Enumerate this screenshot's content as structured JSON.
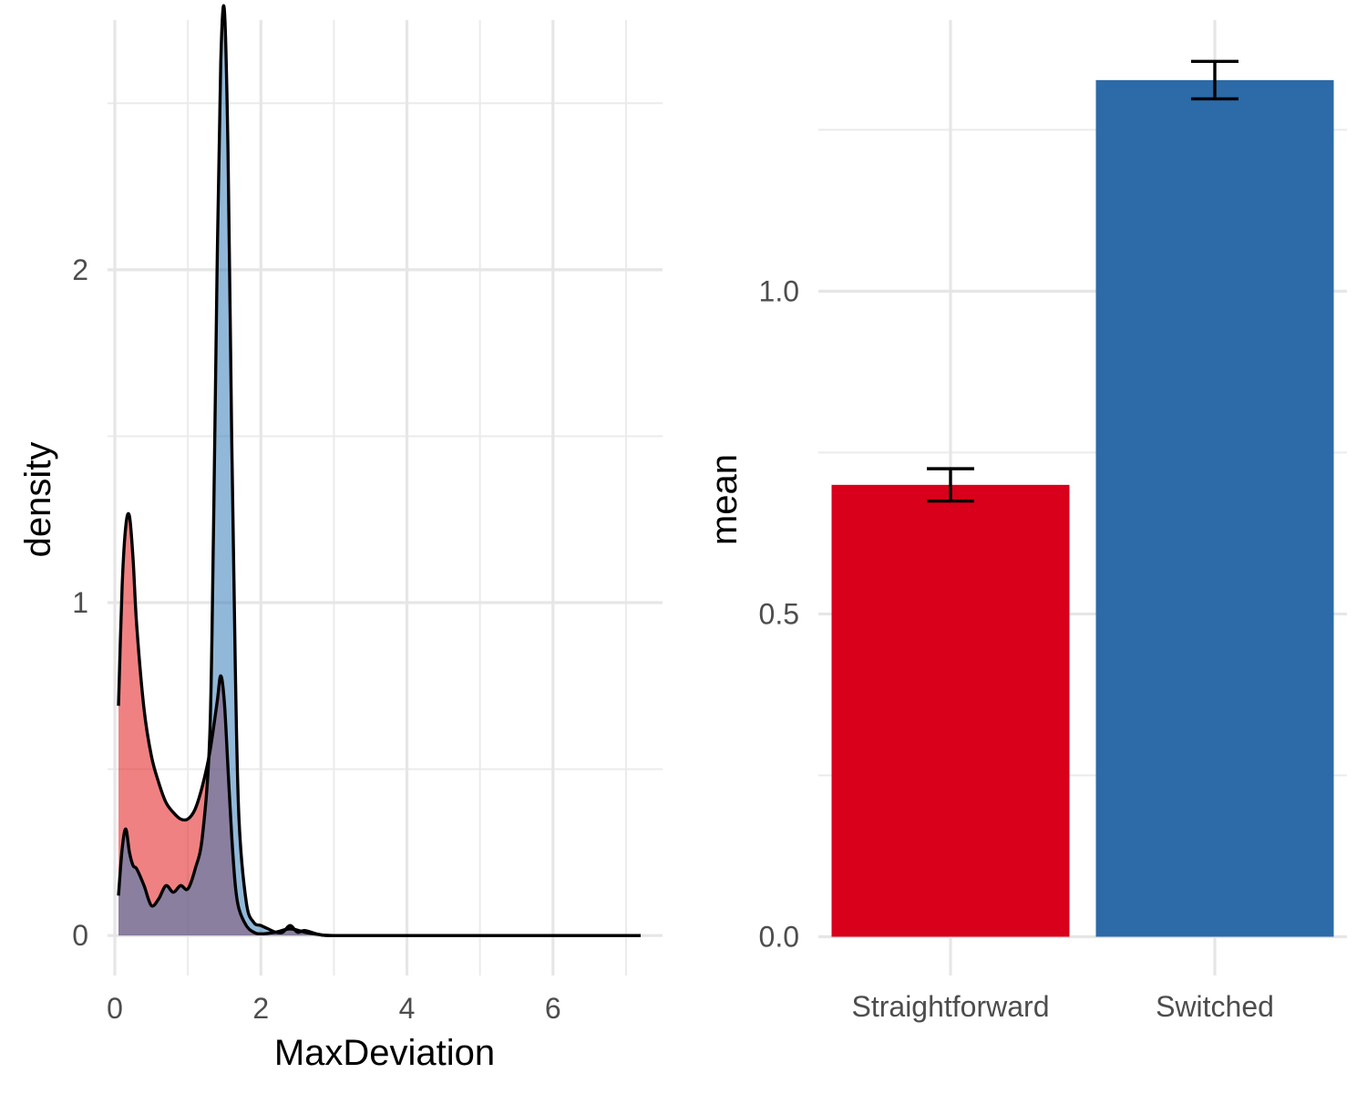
{
  "chart_data": [
    {
      "type": "area",
      "xlabel": "MaxDeviation",
      "ylabel": "density",
      "xlim": [
        -0.1,
        7.5
      ],
      "ylim": [
        -0.12,
        2.75
      ],
      "x_ticks": [
        0,
        2,
        4,
        6
      ],
      "x_tick_labels": [
        "0",
        "2",
        "4",
        "6"
      ],
      "y_ticks": [
        0,
        1,
        2
      ],
      "y_tick_labels": [
        "0",
        "1",
        "2"
      ],
      "grid": true,
      "legend": "none",
      "series": [
        {
          "color": "#e41a1c",
          "fill_opacity": 0.55,
          "x": [
            0.05,
            0.1,
            0.15,
            0.2,
            0.25,
            0.3,
            0.4,
            0.5,
            0.6,
            0.7,
            0.8,
            0.9,
            1.0,
            1.1,
            1.2,
            1.3,
            1.4,
            1.45,
            1.5,
            1.55,
            1.6,
            1.65,
            1.7,
            1.8,
            1.9,
            2.0,
            2.2,
            2.4,
            2.6,
            2.8,
            3.0,
            4.0,
            5.0,
            6.0,
            7.2
          ],
          "y": [
            0.69,
            1.05,
            1.23,
            1.26,
            1.13,
            0.93,
            0.68,
            0.54,
            0.46,
            0.4,
            0.37,
            0.35,
            0.35,
            0.38,
            0.45,
            0.55,
            0.7,
            0.78,
            0.7,
            0.5,
            0.3,
            0.15,
            0.08,
            0.03,
            0.01,
            0.005,
            0.01,
            0.02,
            0.01,
            0.003,
            0.0,
            0.0,
            0.0,
            0.0,
            0.0
          ]
        },
        {
          "color": "#377eb8",
          "fill_opacity": 0.55,
          "x": [
            0.05,
            0.1,
            0.15,
            0.2,
            0.25,
            0.3,
            0.4,
            0.5,
            0.6,
            0.7,
            0.8,
            0.9,
            1.0,
            1.1,
            1.2,
            1.3,
            1.35,
            1.4,
            1.45,
            1.5,
            1.55,
            1.6,
            1.65,
            1.7,
            1.8,
            1.9,
            2.0,
            2.1,
            2.2,
            2.3,
            2.4,
            2.5,
            2.6,
            2.8,
            3.0,
            4.0,
            5.0,
            6.0,
            7.2
          ],
          "y": [
            0.12,
            0.26,
            0.32,
            0.25,
            0.21,
            0.2,
            0.15,
            0.09,
            0.11,
            0.15,
            0.13,
            0.15,
            0.14,
            0.2,
            0.3,
            0.6,
            1.2,
            2.0,
            2.62,
            2.78,
            2.35,
            1.5,
            0.8,
            0.35,
            0.1,
            0.04,
            0.03,
            0.02,
            0.01,
            0.01,
            0.03,
            0.01,
            0.015,
            0.003,
            0.0,
            0.0,
            0.0,
            0.0,
            0.0
          ]
        }
      ]
    },
    {
      "type": "bar",
      "xlabel": "",
      "ylabel": "mean",
      "categories": [
        "Straightforward",
        "Switched"
      ],
      "values": [
        0.7,
        1.327
      ],
      "errors": [
        0.025,
        0.029
      ],
      "colors": [
        "#d9001b",
        "#2c6aa8"
      ],
      "ylim": [
        -0.06,
        1.42
      ],
      "y_ticks": [
        0.0,
        0.5,
        1.0
      ],
      "y_tick_labels": [
        "0.0",
        "0.5",
        "1.0"
      ],
      "minor_y_ticks": [
        0.25,
        0.75,
        1.25
      ],
      "grid": true,
      "legend": "none"
    }
  ]
}
